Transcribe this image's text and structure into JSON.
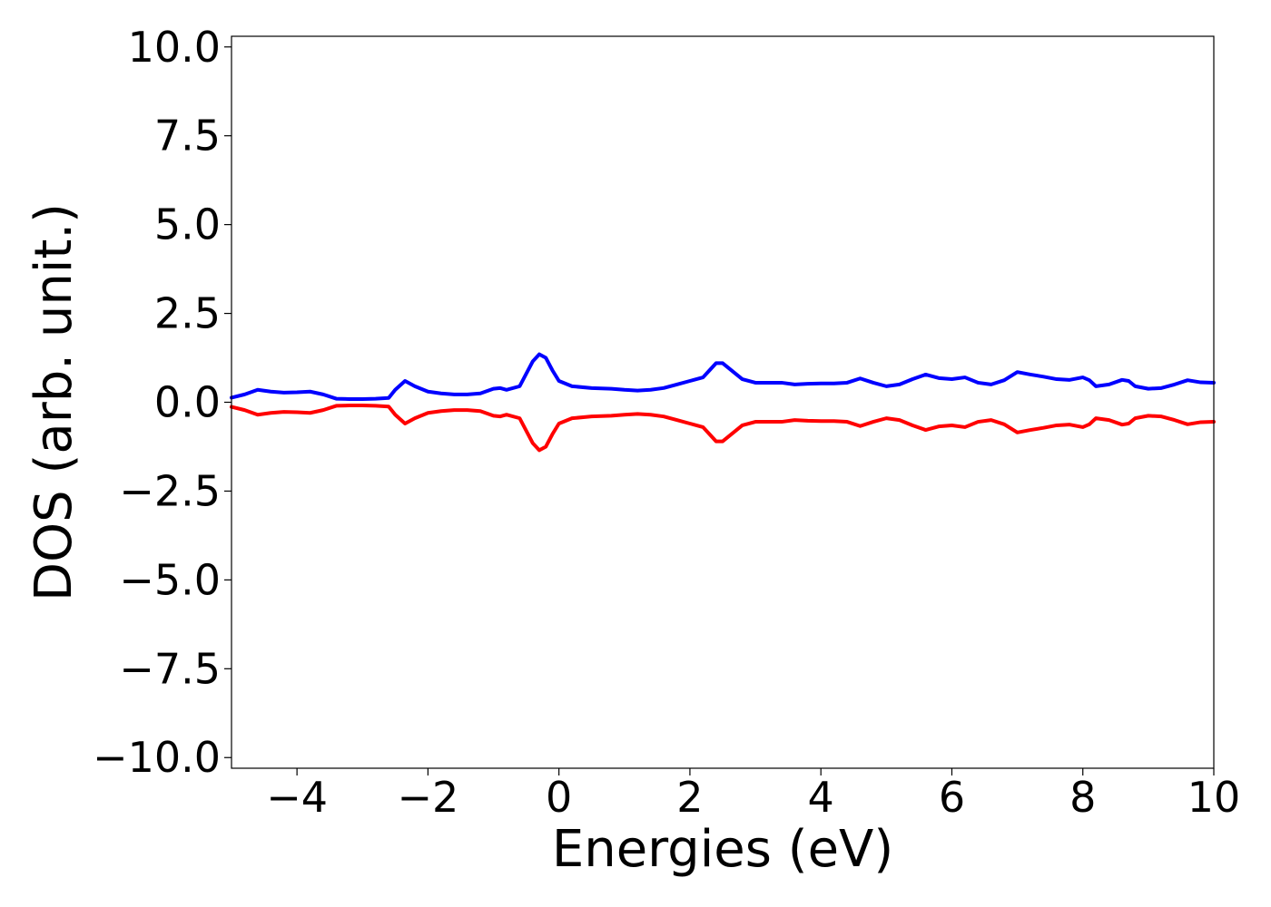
{
  "chart_data": {
    "type": "line",
    "title": "",
    "xlabel": "Energies (eV)",
    "ylabel": "DOS (arb. unit.)",
    "xlim": [
      -5,
      10
    ],
    "ylim": [
      -10.3,
      10.3
    ],
    "x_ticks": [
      -4,
      -2,
      0,
      2,
      4,
      6,
      8,
      10
    ],
    "x_tick_labels": [
      "−4",
      "−2",
      "0",
      "2",
      "4",
      "6",
      "8",
      "10"
    ],
    "y_ticks": [
      10.0,
      7.5,
      5.0,
      2.5,
      0.0,
      -2.5,
      -5.0,
      -7.5,
      -10.0
    ],
    "y_tick_labels": [
      "10.0",
      "7.5",
      "5.0",
      "2.5",
      "0.0",
      "−2.5",
      "−5.0",
      "−7.5",
      "−10.0"
    ],
    "grid": false,
    "legend": "none",
    "series": [
      {
        "color": "#0000ff",
        "x": [
          -5.0,
          -4.8,
          -4.6,
          -4.4,
          -4.2,
          -4.0,
          -3.8,
          -3.6,
          -3.4,
          -3.2,
          -3.0,
          -2.8,
          -2.6,
          -2.5,
          -2.35,
          -2.2,
          -2.0,
          -1.8,
          -1.6,
          -1.4,
          -1.2,
          -1.0,
          -0.9,
          -0.8,
          -0.6,
          -0.4,
          -0.3,
          -0.2,
          -0.1,
          0.0,
          0.2,
          0.5,
          0.8,
          1.0,
          1.2,
          1.4,
          1.6,
          1.8,
          2.0,
          2.2,
          2.3,
          2.4,
          2.5,
          2.6,
          2.8,
          3.0,
          3.2,
          3.4,
          3.6,
          3.8,
          4.0,
          4.2,
          4.4,
          4.6,
          4.8,
          5.0,
          5.2,
          5.4,
          5.6,
          5.8,
          6.0,
          6.2,
          6.4,
          6.6,
          6.8,
          7.0,
          7.2,
          7.4,
          7.6,
          7.8,
          8.0,
          8.1,
          8.2,
          8.4,
          8.6,
          8.7,
          8.8,
          9.0,
          9.2,
          9.4,
          9.6,
          9.8,
          10.0
        ],
        "y": [
          0.13,
          0.22,
          0.35,
          0.3,
          0.27,
          0.28,
          0.3,
          0.22,
          0.1,
          0.09,
          0.09,
          0.1,
          0.12,
          0.35,
          0.6,
          0.45,
          0.3,
          0.25,
          0.22,
          0.22,
          0.25,
          0.38,
          0.4,
          0.35,
          0.45,
          1.15,
          1.35,
          1.25,
          0.9,
          0.6,
          0.45,
          0.4,
          0.38,
          0.35,
          0.33,
          0.35,
          0.4,
          0.5,
          0.6,
          0.7,
          0.9,
          1.1,
          1.1,
          0.95,
          0.65,
          0.55,
          0.55,
          0.55,
          0.5,
          0.52,
          0.53,
          0.53,
          0.55,
          0.67,
          0.55,
          0.45,
          0.5,
          0.65,
          0.78,
          0.68,
          0.65,
          0.7,
          0.55,
          0.5,
          0.62,
          0.85,
          0.78,
          0.72,
          0.65,
          0.63,
          0.7,
          0.62,
          0.45,
          0.5,
          0.63,
          0.6,
          0.45,
          0.38,
          0.4,
          0.5,
          0.62,
          0.56,
          0.55
        ]
      },
      {
        "color": "#ff0000",
        "x": [
          -5.0,
          -4.8,
          -4.6,
          -4.4,
          -4.2,
          -4.0,
          -3.8,
          -3.6,
          -3.4,
          -3.2,
          -3.0,
          -2.8,
          -2.6,
          -2.5,
          -2.35,
          -2.2,
          -2.0,
          -1.8,
          -1.6,
          -1.4,
          -1.2,
          -1.0,
          -0.9,
          -0.8,
          -0.6,
          -0.4,
          -0.3,
          -0.2,
          -0.1,
          0.0,
          0.2,
          0.5,
          0.8,
          1.0,
          1.2,
          1.4,
          1.6,
          1.8,
          2.0,
          2.2,
          2.3,
          2.4,
          2.5,
          2.6,
          2.8,
          3.0,
          3.2,
          3.4,
          3.6,
          3.8,
          4.0,
          4.2,
          4.4,
          4.6,
          4.8,
          5.0,
          5.2,
          5.4,
          5.6,
          5.8,
          6.0,
          6.2,
          6.4,
          6.6,
          6.8,
          7.0,
          7.2,
          7.4,
          7.6,
          7.8,
          8.0,
          8.1,
          8.2,
          8.4,
          8.6,
          8.7,
          8.8,
          9.0,
          9.2,
          9.4,
          9.6,
          9.8,
          10.0
        ],
        "y": [
          -0.13,
          -0.22,
          -0.35,
          -0.3,
          -0.27,
          -0.28,
          -0.3,
          -0.22,
          -0.1,
          -0.09,
          -0.09,
          -0.1,
          -0.12,
          -0.35,
          -0.6,
          -0.45,
          -0.3,
          -0.25,
          -0.22,
          -0.22,
          -0.25,
          -0.38,
          -0.4,
          -0.35,
          -0.45,
          -1.15,
          -1.35,
          -1.25,
          -0.9,
          -0.6,
          -0.45,
          -0.4,
          -0.38,
          -0.35,
          -0.33,
          -0.35,
          -0.4,
          -0.5,
          -0.6,
          -0.7,
          -0.9,
          -1.1,
          -1.1,
          -0.95,
          -0.65,
          -0.55,
          -0.55,
          -0.55,
          -0.5,
          -0.52,
          -0.53,
          -0.53,
          -0.55,
          -0.67,
          -0.55,
          -0.45,
          -0.5,
          -0.65,
          -0.78,
          -0.68,
          -0.65,
          -0.7,
          -0.55,
          -0.5,
          -0.62,
          -0.85,
          -0.78,
          -0.72,
          -0.65,
          -0.63,
          -0.7,
          -0.62,
          -0.45,
          -0.5,
          -0.63,
          -0.6,
          -0.45,
          -0.38,
          -0.4,
          -0.5,
          -0.62,
          -0.56,
          -0.55
        ]
      }
    ]
  }
}
